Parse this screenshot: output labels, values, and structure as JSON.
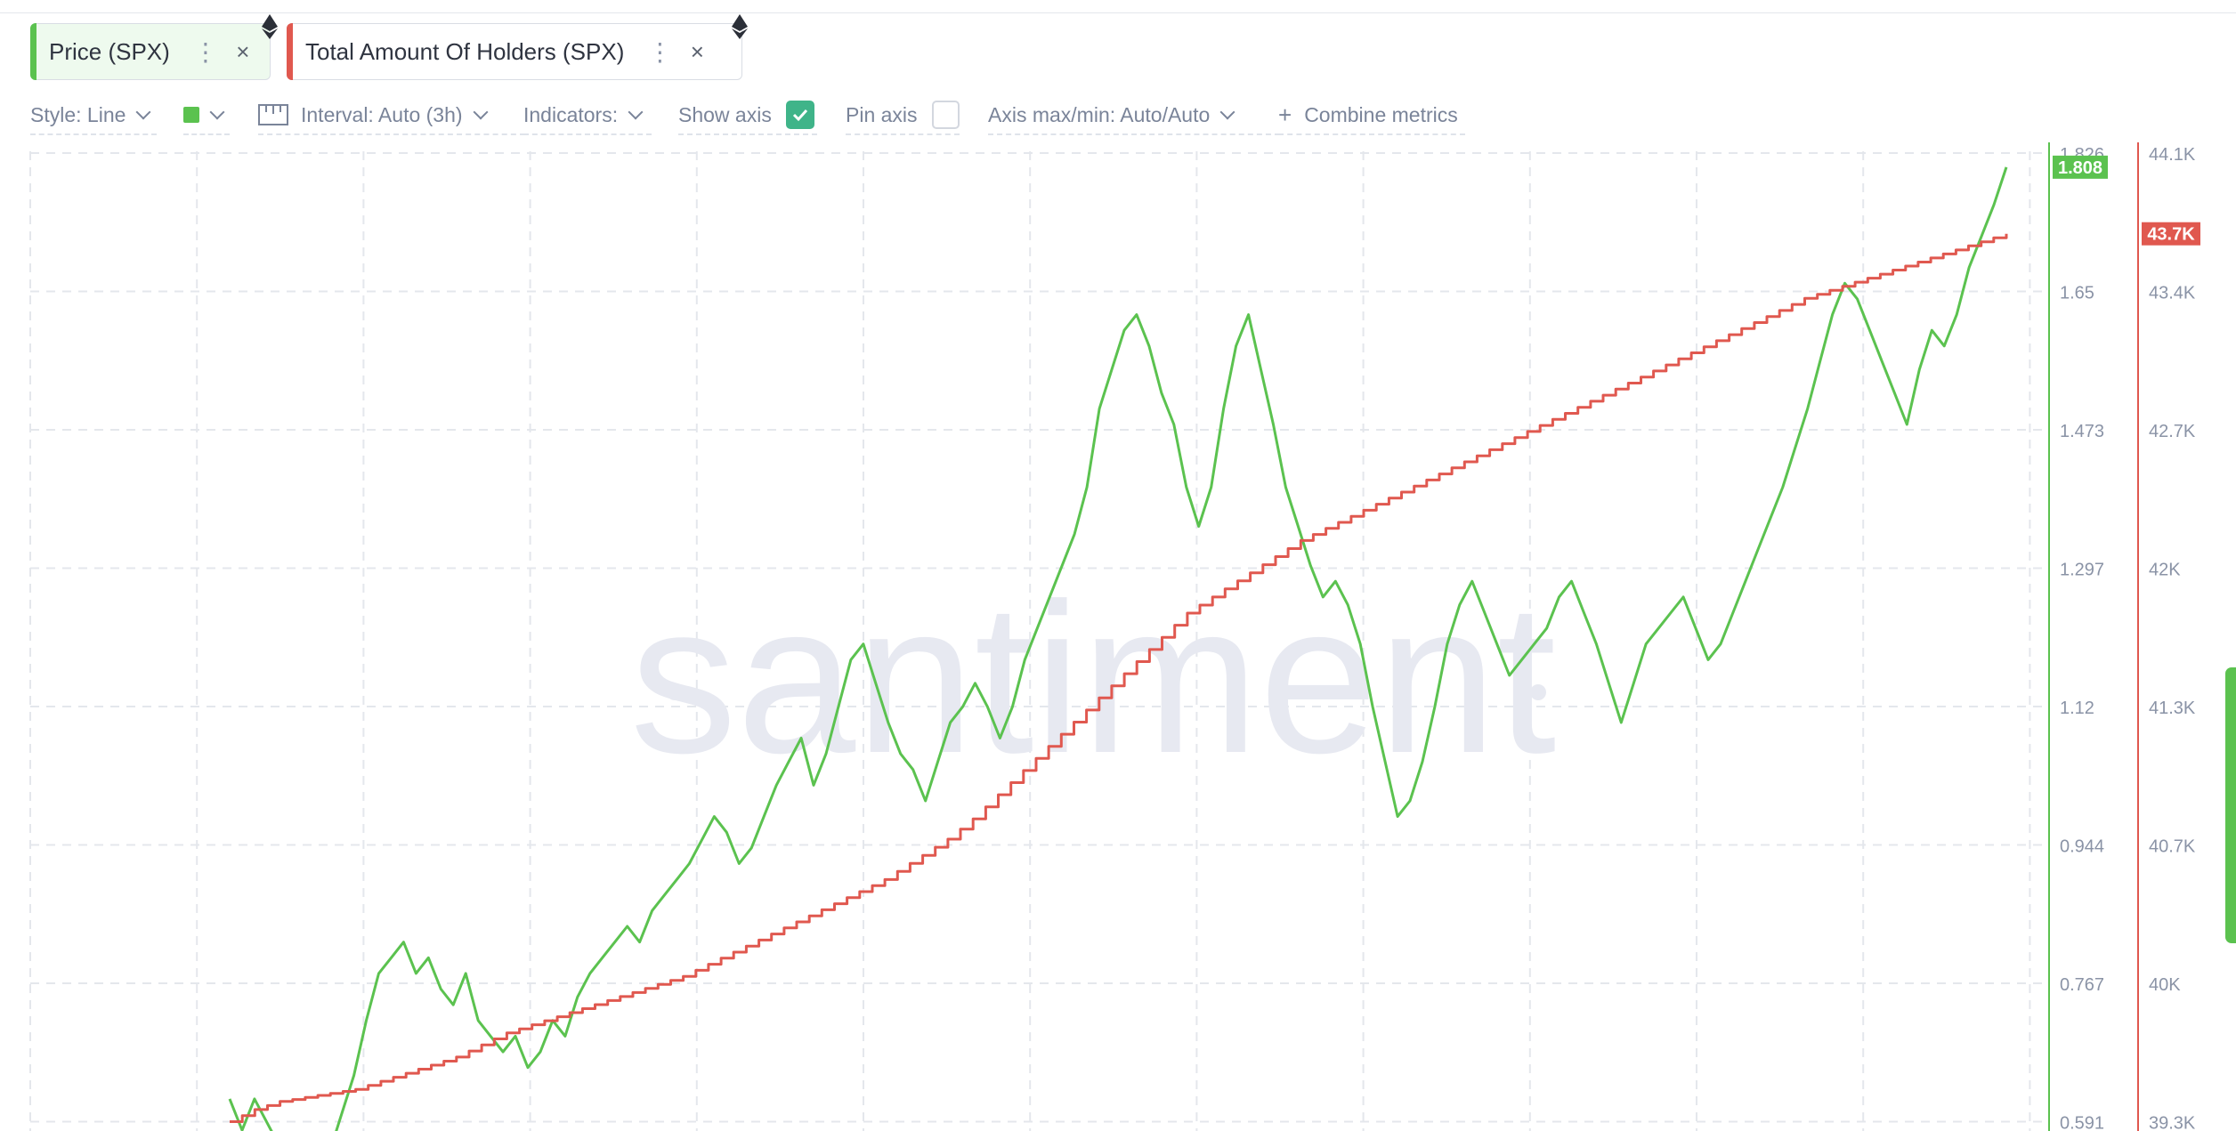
{
  "metrics": [
    {
      "label": "Price (SPX)",
      "color": "#5bc24f",
      "menu_icon": "vertical-dots-icon",
      "close_icon": "close-icon",
      "network_icon": "ethereum-icon"
    },
    {
      "label": "Total Amount Of Holders (SPX)",
      "color": "#e0584f",
      "menu_icon": "vertical-dots-icon",
      "close_icon": "close-icon",
      "network_icon": "ethereum-icon"
    }
  ],
  "toolbar": {
    "style": "Style: Line",
    "interval": "Interval: Auto (3h)",
    "indicators": "Indicators:",
    "show_axis": "Show axis",
    "show_axis_checked": true,
    "pin_axis": "Pin axis",
    "pin_axis_checked": false,
    "axis_maxmin": "Axis max/min: Auto/Auto",
    "combine": "Combine metrics"
  },
  "watermark": "santiment",
  "chart_data": {
    "type": "line",
    "grid": true,
    "series": [
      {
        "name": "Price (SPX)",
        "color": "#5bc24f",
        "axis": "right-1",
        "last_value_label": "1.808",
        "values": [
          0.62,
          0.58,
          0.62,
          0.59,
          0.56,
          0.55,
          0.54,
          0.56,
          0.55,
          0.6,
          0.65,
          0.72,
          0.78,
          0.8,
          0.82,
          0.78,
          0.8,
          0.76,
          0.74,
          0.78,
          0.72,
          0.7,
          0.68,
          0.7,
          0.66,
          0.68,
          0.72,
          0.7,
          0.75,
          0.78,
          0.8,
          0.82,
          0.84,
          0.82,
          0.86,
          0.88,
          0.9,
          0.92,
          0.95,
          0.98,
          0.96,
          0.92,
          0.94,
          0.98,
          1.02,
          1.05,
          1.08,
          1.02,
          1.06,
          1.12,
          1.18,
          1.2,
          1.15,
          1.1,
          1.06,
          1.04,
          1.0,
          1.05,
          1.1,
          1.12,
          1.15,
          1.12,
          1.08,
          1.12,
          1.18,
          1.22,
          1.26,
          1.3,
          1.34,
          1.4,
          1.5,
          1.55,
          1.6,
          1.62,
          1.58,
          1.52,
          1.48,
          1.4,
          1.35,
          1.4,
          1.5,
          1.58,
          1.62,
          1.55,
          1.48,
          1.4,
          1.35,
          1.3,
          1.26,
          1.28,
          1.25,
          1.2,
          1.12,
          1.05,
          0.98,
          1.0,
          1.05,
          1.12,
          1.2,
          1.25,
          1.28,
          1.24,
          1.2,
          1.16,
          1.18,
          1.2,
          1.22,
          1.26,
          1.28,
          1.24,
          1.2,
          1.15,
          1.1,
          1.15,
          1.2,
          1.22,
          1.24,
          1.26,
          1.22,
          1.18,
          1.2,
          1.24,
          1.28,
          1.32,
          1.36,
          1.4,
          1.45,
          1.5,
          1.56,
          1.62,
          1.66,
          1.64,
          1.6,
          1.56,
          1.52,
          1.48,
          1.55,
          1.6,
          1.58,
          1.62,
          1.68,
          1.72,
          1.76,
          1.808
        ]
      },
      {
        "name": "Total Amount Of Holders (SPX)",
        "color": "#e0584f",
        "axis": "right-2",
        "last_value_label": "43.7K",
        "values": [
          39300,
          39330,
          39360,
          39380,
          39400,
          39410,
          39420,
          39430,
          39440,
          39450,
          39460,
          39480,
          39500,
          39520,
          39540,
          39560,
          39580,
          39600,
          39620,
          39650,
          39680,
          39710,
          39740,
          39760,
          39780,
          39800,
          39820,
          39840,
          39860,
          39880,
          39900,
          39920,
          39940,
          39960,
          39980,
          40000,
          40020,
          40050,
          40080,
          40110,
          40140,
          40170,
          40200,
          40230,
          40260,
          40290,
          40320,
          40350,
          40380,
          40410,
          40440,
          40470,
          40500,
          40540,
          40580,
          40620,
          40660,
          40700,
          40750,
          40800,
          40860,
          40920,
          40980,
          41040,
          41100,
          41160,
          41220,
          41280,
          41340,
          41400,
          41460,
          41520,
          41580,
          41640,
          41700,
          41760,
          41820,
          41860,
          41900,
          41940,
          41980,
          42020,
          42060,
          42100,
          42140,
          42180,
          42210,
          42240,
          42270,
          42300,
          42330,
          42360,
          42390,
          42420,
          42450,
          42480,
          42510,
          42540,
          42570,
          42600,
          42630,
          42660,
          42690,
          42720,
          42750,
          42780,
          42810,
          42840,
          42870,
          42900,
          42930,
          42960,
          42990,
          43020,
          43050,
          43080,
          43110,
          43140,
          43170,
          43200,
          43230,
          43260,
          43290,
          43320,
          43350,
          43380,
          43400,
          43420,
          43440,
          43460,
          43480,
          43500,
          43520,
          43540,
          43560,
          43580,
          43600,
          43620,
          43640,
          43660,
          43680,
          43700
        ]
      }
    ],
    "axes": [
      {
        "id": "right-1",
        "color": "#5bc24f",
        "ticks": [
          "1.826",
          "1.65",
          "1.473",
          "1.297",
          "1.12",
          "0.944",
          "0.767",
          "0.591"
        ],
        "range": [
          0.591,
          1.826
        ]
      },
      {
        "id": "right-2",
        "color": "#e0584f",
        "ticks": [
          "44.1K",
          "43.4K",
          "42.7K",
          "42K",
          "41.3K",
          "40.7K",
          "40K",
          "39.3K"
        ],
        "range": [
          39300,
          44100
        ]
      }
    ]
  }
}
